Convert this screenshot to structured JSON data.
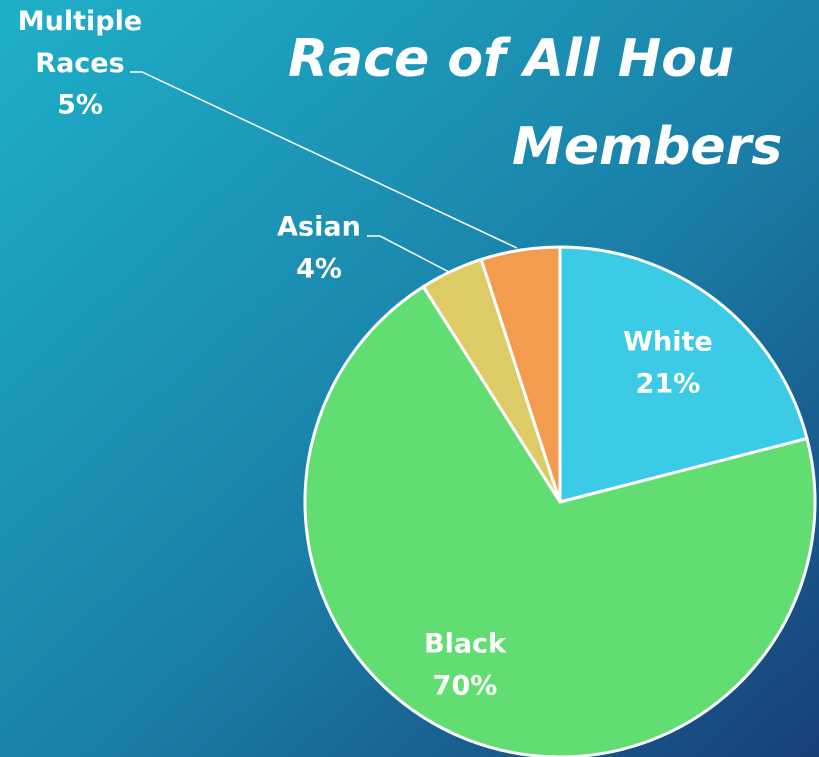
{
  "chart_data": {
    "type": "pie",
    "title_lines": [
      "Race of All Hou",
      "Members"
    ],
    "categories": [
      "White",
      "Black",
      "Asian",
      "Multiple Races"
    ],
    "values": [
      21,
      70,
      4,
      5
    ],
    "value_labels": [
      "21%",
      "70%",
      "4%",
      "5%"
    ],
    "colors": [
      "#3ccbe6",
      "#62dd72",
      "#ddcc66",
      "#f39c50"
    ]
  }
}
